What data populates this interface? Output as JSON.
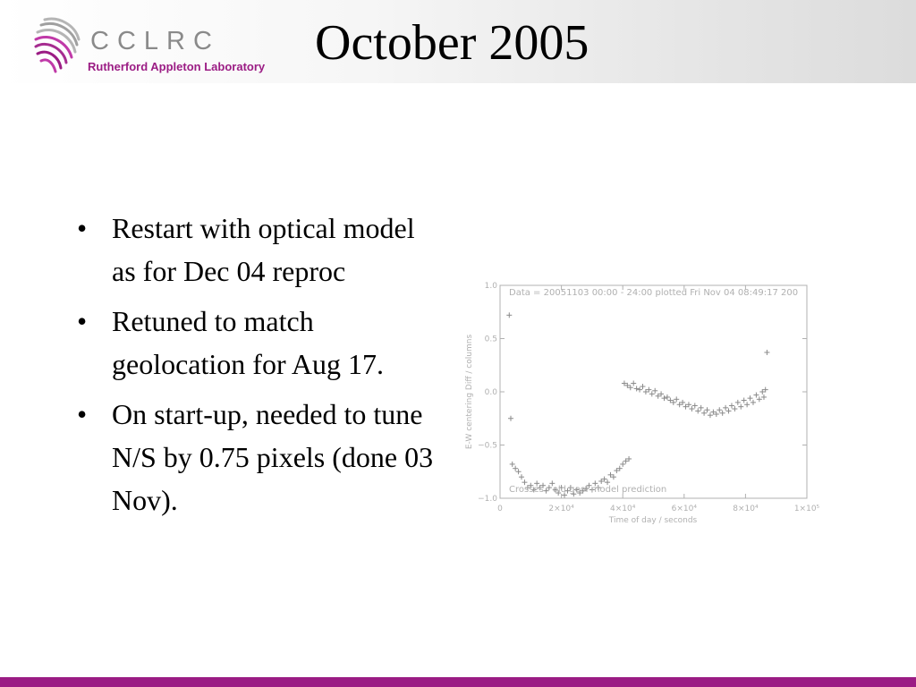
{
  "header": {
    "logo_name": "CCLRC",
    "logo_subtitle": "Rutherford Appleton Laboratory",
    "title": "October 2005",
    "logo_color": "#9b1c84"
  },
  "bullets": [
    "Restart with optical model as for Dec 04 reproc",
    "Retuned to match geolocation for Aug 17.",
    "On start-up, needed to tune N/S by 0.75 pixels (done 03 Nov)."
  ],
  "bullet_glyph": "•",
  "footer": {
    "bar_color": "#9b1c84"
  },
  "chart_data": {
    "type": "scatter",
    "title": "Data = 20051103 00:00 - 24:00 plotted Fri Nov 04 08:49:17 200",
    "annotation": "Crosses - old geol model prediction",
    "xlabel": "Time of day / seconds",
    "ylabel": "E-W centering Diff / columns",
    "xlim": [
      0,
      100000
    ],
    "ylim": [
      -1.0,
      1.0
    ],
    "x_ticks": [
      0,
      20000,
      40000,
      60000,
      80000,
      100000
    ],
    "x_tick_labels": [
      "0",
      "2×10⁴",
      "4×10⁴",
      "6×10⁴",
      "8×10⁴",
      "1×10⁵"
    ],
    "y_ticks": [
      -1.0,
      -0.5,
      0.0,
      0.5,
      1.0
    ],
    "y_tick_labels": [
      "−1.0",
      "−0.5",
      "0.0",
      "0.5",
      "1.0"
    ],
    "marker": "+",
    "color": "#b0b0b0",
    "series": [
      {
        "points": [
          [
            3000,
            0.72
          ],
          [
            3500,
            -0.25
          ],
          [
            4000,
            -0.68
          ],
          [
            5000,
            -0.72
          ],
          [
            6000,
            -0.75
          ],
          [
            7000,
            -0.8
          ],
          [
            8000,
            -0.85
          ],
          [
            9000,
            -0.9
          ],
          [
            10000,
            -0.88
          ],
          [
            11000,
            -0.92
          ],
          [
            12000,
            -0.86
          ],
          [
            13000,
            -0.9
          ],
          [
            14000,
            -0.88
          ],
          [
            15000,
            -0.93
          ],
          [
            16000,
            -0.9
          ],
          [
            17000,
            -0.86
          ],
          [
            18000,
            -0.92
          ],
          [
            19000,
            -0.95
          ],
          [
            20000,
            -0.9
          ],
          [
            21000,
            -0.97
          ],
          [
            22000,
            -0.93
          ],
          [
            23000,
            -0.9
          ],
          [
            24000,
            -0.96
          ],
          [
            25000,
            -0.92
          ],
          [
            26000,
            -0.95
          ],
          [
            27000,
            -0.93
          ],
          [
            28000,
            -0.91
          ],
          [
            29000,
            -0.88
          ],
          [
            30000,
            -0.92
          ],
          [
            31000,
            -0.86
          ],
          [
            32000,
            -0.9
          ],
          [
            33000,
            -0.84
          ],
          [
            34000,
            -0.82
          ],
          [
            35000,
            -0.85
          ],
          [
            36000,
            -0.78
          ],
          [
            37000,
            -0.8
          ],
          [
            38000,
            -0.74
          ],
          [
            39000,
            -0.72
          ],
          [
            40000,
            -0.68
          ],
          [
            41000,
            -0.65
          ],
          [
            42000,
            -0.63
          ],
          [
            40500,
            0.08
          ],
          [
            41500,
            0.06
          ],
          [
            42500,
            0.04
          ],
          [
            43500,
            0.08
          ],
          [
            44500,
            0.03
          ],
          [
            45500,
            0.02
          ],
          [
            46500,
            0.05
          ],
          [
            47500,
            0.0
          ],
          [
            48500,
            0.02
          ],
          [
            49500,
            -0.02
          ],
          [
            50500,
            0.01
          ],
          [
            51500,
            -0.04
          ],
          [
            52500,
            -0.02
          ],
          [
            53500,
            -0.06
          ],
          [
            54500,
            -0.05
          ],
          [
            55500,
            -0.08
          ],
          [
            56500,
            -0.1
          ],
          [
            57500,
            -0.07
          ],
          [
            58500,
            -0.12
          ],
          [
            59500,
            -0.1
          ],
          [
            60500,
            -0.14
          ],
          [
            61500,
            -0.12
          ],
          [
            62500,
            -0.16
          ],
          [
            63500,
            -0.13
          ],
          [
            64500,
            -0.18
          ],
          [
            65500,
            -0.15
          ],
          [
            66500,
            -0.2
          ],
          [
            67500,
            -0.17
          ],
          [
            68500,
            -0.22
          ],
          [
            69500,
            -0.19
          ],
          [
            70500,
            -0.21
          ],
          [
            71500,
            -0.17
          ],
          [
            72500,
            -0.2
          ],
          [
            73500,
            -0.15
          ],
          [
            74500,
            -0.18
          ],
          [
            75500,
            -0.13
          ],
          [
            76500,
            -0.16
          ],
          [
            77500,
            -0.1
          ],
          [
            78500,
            -0.14
          ],
          [
            79500,
            -0.08
          ],
          [
            80500,
            -0.12
          ],
          [
            81500,
            -0.06
          ],
          [
            82500,
            -0.1
          ],
          [
            83500,
            -0.03
          ],
          [
            84500,
            -0.07
          ],
          [
            85500,
            0.0
          ],
          [
            86000,
            -0.05
          ],
          [
            86500,
            0.02
          ],
          [
            87000,
            0.37
          ]
        ]
      }
    ]
  }
}
